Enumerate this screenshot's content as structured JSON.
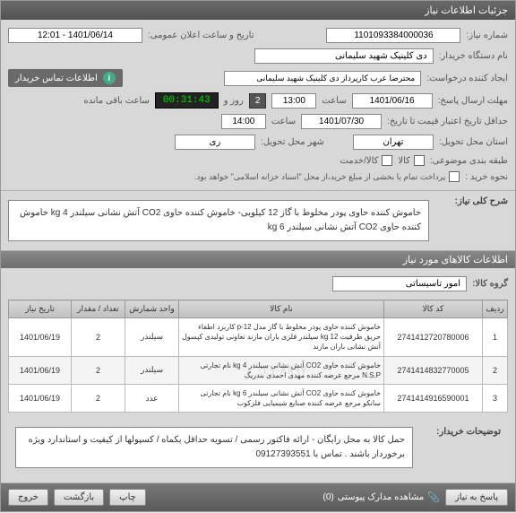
{
  "header": {
    "title": "جزئیات اطلاعات نیاز"
  },
  "top": {
    "lbl_niaz_no": "شماره نیاز:",
    "niaz_no": "1101093384000036",
    "lbl_pub_time": "تاریخ و ساعت اعلان عمومی:",
    "pub_time": "1401/06/14 - 12:01",
    "lbl_buyer": "نام دستگاه خریدار:",
    "buyer": "دی کلینیک شهید سلیمانی",
    "lbl_creator": "ایجاد کننده درخواست:",
    "creator": "محترضا عرب کارپرداز دی کلینیک شهید سلیمانی",
    "info_text": "اطلاعات تماس خریدار",
    "lbl_deadline": "مهلت ارسال پاسخ:",
    "deadline_date": "1401/06/16",
    "lbl_hour": "ساعت",
    "deadline_hour": "13:00",
    "day_count": "2",
    "lbl_day": "روز و",
    "remaining": "00:31:43",
    "lbl_remaining": "ساعت باقی مانده",
    "lbl_valid": "حداقل تاریخ اعتبار قیمت تا تاریخ:",
    "valid_date": "1401/07/30",
    "valid_hour": "14:00",
    "lbl_prov": "استان محل تحویل:",
    "prov": "تهران",
    "lbl_city": "شهر محل تحویل:",
    "city": "ری",
    "lbl_cat": "طبقه بندی موضوعی:",
    "cat_opt1": "کالا",
    "cat_opt2": "کالا/خدمت",
    "lbl_buy_mode": "نحوه خرید :",
    "buy_mode_text": "پرداخت تمام یا بخشی از مبلغ خرید،از محل \"اسناد خزانه اسلامی\" خواهد بود."
  },
  "need": {
    "lbl": "شرح کلی نیاز:",
    "text": "خاموش کننده حاوی پودر مخلوط با گاز 12 کیلویی- خاموش کننده حاوی CO2 آتش نشانی سیلندر 4 kg خاموش کننده حاوی CO2 آتش نشانی سیلندر 6 kg"
  },
  "goods_section": "اطلاعات کالاهای مورد نیاز",
  "group": {
    "lbl": "گروه کالا:",
    "val": "امور تاسیساتی"
  },
  "table": {
    "headers": [
      "ردیف",
      "کد کالا",
      "نام کالا",
      "واحد شمارش",
      "تعداد / مقدار",
      "تاریخ نیاز"
    ],
    "rows": [
      {
        "idx": "1",
        "code": "2741412720780006",
        "name": "خاموش کننده حاوی پودر مخلوط با گاز مدل p-12 کاربرد اطفاء حریق ظرفیت 12 kg سیلندر فلزی باران مازند تعاونی تولیدی کپسول آتش نشانی باران مازند",
        "unit": "سیلندر",
        "qty": "2",
        "date": "1401/06/19"
      },
      {
        "idx": "2",
        "code": "2741414832770005",
        "name": "خاموش کننده حاوی CO2 آتش نشانی سیلندر 4 kg نام تجارتی N.S.P مرجع عرضه کننده مهدی احمدی بندریگ",
        "unit": "سیلندر",
        "qty": "2",
        "date": "1401/06/19"
      },
      {
        "idx": "3",
        "code": "2741414916590001",
        "name": "خاموش کننده حاوی CO2 آتش نشانی سیلندر 6 kg نام تجارتی سانکو مرجع عرضه کننده صنایع شیمیایی فلزکوب",
        "unit": "عدد",
        "qty": "2",
        "date": "1401/06/19"
      }
    ],
    "watermark": "۰۲۱-۸۸۹۷"
  },
  "buyer_note": {
    "lbl": "توضیحات خریدار:",
    "text": "حمل کالا به محل رایگان - ارائه فاکتور رسمی / تسویه حداقل یکماه / کسپولها از کیفیت و استاندارد ویژه برخوردار باشند . تماس با 09127393551"
  },
  "footer": {
    "btn_reply": "پاسخ به نیاز",
    "attach": "مشاهده مدارک پیوستی",
    "attach_cnt": "(0)",
    "btn_print": "چاپ",
    "btn_back": "بازگشت",
    "btn_exit": "خروج"
  }
}
